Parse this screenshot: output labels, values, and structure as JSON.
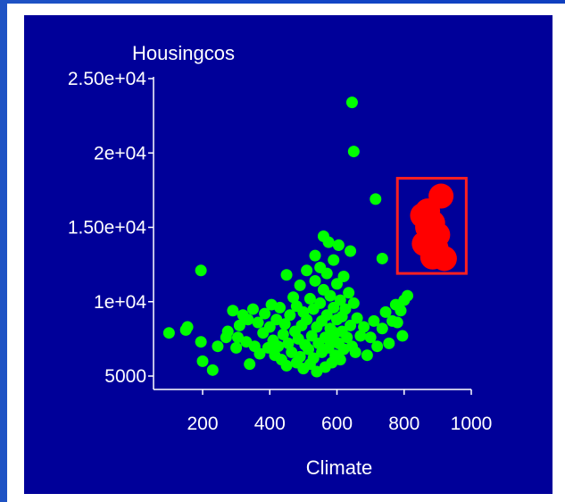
{
  "chart_data": {
    "type": "scatter",
    "xlabel": "Climate",
    "ylabel": "Housingcos",
    "xlim": [
      100,
      1000
    ],
    "ylim": [
      3500,
      25000
    ],
    "x_ticks": [
      {
        "value": 200,
        "label": "200"
      },
      {
        "value": 400,
        "label": "400"
      },
      {
        "value": 600,
        "label": "600"
      },
      {
        "value": 800,
        "label": "800"
      },
      {
        "value": 1000,
        "label": "1000"
      }
    ],
    "y_ticks": [
      {
        "value": 5000,
        "label": "5000"
      },
      {
        "value": 10000,
        "label": "1e+04"
      },
      {
        "value": 15000,
        "label": "1.50e+04"
      },
      {
        "value": 20000,
        "label": "2e+04"
      },
      {
        "value": 25000,
        "label": "2.50e+04"
      }
    ],
    "grid": false,
    "colors": {
      "points": "#00ff00",
      "highlighted": "#ff0000",
      "background": "#000099",
      "axis": "#ffffff",
      "selection_box": "#ff0000"
    },
    "selection": {
      "x_range": [
        780,
        985
      ],
      "y_range": [
        11900,
        18300
      ]
    },
    "series": [
      {
        "highlighted": false,
        "points": [
          [
            645,
            23400
          ],
          [
            650,
            20100
          ],
          [
            715,
            16900
          ],
          [
            735,
            12900
          ],
          [
            195,
            12100
          ],
          [
            100,
            7900
          ],
          [
            150,
            8100
          ],
          [
            155,
            8300
          ],
          [
            195,
            7300
          ],
          [
            200,
            6000
          ],
          [
            230,
            5400
          ],
          [
            245,
            7000
          ],
          [
            270,
            7600
          ],
          [
            275,
            8000
          ],
          [
            290,
            9400
          ],
          [
            300,
            6900
          ],
          [
            305,
            7600
          ],
          [
            310,
            8400
          ],
          [
            320,
            9100
          ],
          [
            330,
            7300
          ],
          [
            335,
            8800
          ],
          [
            340,
            5800
          ],
          [
            350,
            9500
          ],
          [
            355,
            7000
          ],
          [
            365,
            8600
          ],
          [
            370,
            6500
          ],
          [
            380,
            7900
          ],
          [
            385,
            9200
          ],
          [
            395,
            6900
          ],
          [
            400,
            8300
          ],
          [
            405,
            9800
          ],
          [
            410,
            7400
          ],
          [
            415,
            6400
          ],
          [
            420,
            8800
          ],
          [
            425,
            7000
          ],
          [
            430,
            9600
          ],
          [
            435,
            6100
          ],
          [
            440,
            7800
          ],
          [
            445,
            8500
          ],
          [
            450,
            11800
          ],
          [
            450,
            5700
          ],
          [
            455,
            7200
          ],
          [
            460,
            9100
          ],
          [
            465,
            6600
          ],
          [
            470,
            10300
          ],
          [
            475,
            8000
          ],
          [
            480,
            5900
          ],
          [
            480,
            9700
          ],
          [
            485,
            7500
          ],
          [
            490,
            11100
          ],
          [
            490,
            6300
          ],
          [
            495,
            8400
          ],
          [
            500,
            9300
          ],
          [
            500,
            5500
          ],
          [
            505,
            7100
          ],
          [
            510,
            12100
          ],
          [
            510,
            8800
          ],
          [
            515,
            6800
          ],
          [
            520,
            10200
          ],
          [
            520,
            5800
          ],
          [
            525,
            7700
          ],
          [
            530,
            9500
          ],
          [
            530,
            6200
          ],
          [
            535,
            13100
          ],
          [
            535,
            11400
          ],
          [
            540,
            8300
          ],
          [
            540,
            5300
          ],
          [
            545,
            7200
          ],
          [
            550,
            12300
          ],
          [
            550,
            9900
          ],
          [
            555,
            6600
          ],
          [
            555,
            8700
          ],
          [
            560,
            14400
          ],
          [
            560,
            10800
          ],
          [
            565,
            7600
          ],
          [
            565,
            5600
          ],
          [
            570,
            11900
          ],
          [
            570,
            9100
          ],
          [
            575,
            14000
          ],
          [
            575,
            6900
          ],
          [
            580,
            8200
          ],
          [
            580,
            10400
          ],
          [
            585,
            7300
          ],
          [
            585,
            5900
          ],
          [
            590,
            12800
          ],
          [
            590,
            9600
          ],
          [
            595,
            7900
          ],
          [
            595,
            6400
          ],
          [
            600,
            11200
          ],
          [
            600,
            8800
          ],
          [
            605,
            13800
          ],
          [
            605,
            7200
          ],
          [
            610,
            10100
          ],
          [
            610,
            6100
          ],
          [
            615,
            9000
          ],
          [
            615,
            8000
          ],
          [
            620,
            11700
          ],
          [
            620,
            6800
          ],
          [
            625,
            9500
          ],
          [
            630,
            7600
          ],
          [
            635,
            10600
          ],
          [
            640,
            13400
          ],
          [
            640,
            8400
          ],
          [
            645,
            7000
          ],
          [
            650,
            9900
          ],
          [
            655,
            6600
          ],
          [
            660,
            8900
          ],
          [
            670,
            7700
          ],
          [
            680,
            8300
          ],
          [
            690,
            6400
          ],
          [
            700,
            7600
          ],
          [
            710,
            8700
          ],
          [
            720,
            7000
          ],
          [
            735,
            8200
          ],
          [
            745,
            9300
          ],
          [
            755,
            7200
          ],
          [
            765,
            8700
          ],
          [
            775,
            9800
          ],
          [
            780,
            8600
          ],
          [
            790,
            9400
          ],
          [
            795,
            7700
          ],
          [
            800,
            10100
          ],
          [
            810,
            10400
          ]
        ]
      },
      {
        "highlighted": true,
        "points": [
          [
            855,
            15800
          ],
          [
            860,
            13900
          ],
          [
            870,
            16100
          ],
          [
            875,
            14300
          ],
          [
            885,
            15300
          ],
          [
            895,
            13600
          ],
          [
            900,
            14500
          ],
          [
            910,
            17100
          ],
          [
            920,
            12900
          ],
          [
            885,
            13000
          ],
          [
            870,
            15000
          ]
        ]
      }
    ]
  }
}
